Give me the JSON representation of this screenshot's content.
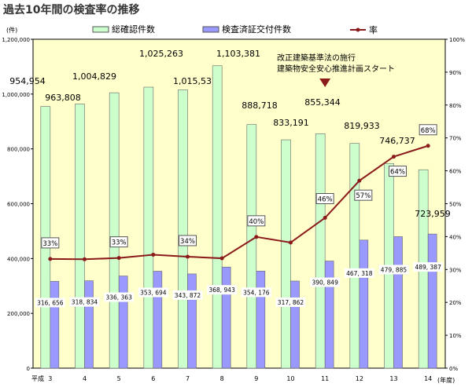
{
  "chart_data": {
    "type": "bar",
    "title": "過去10年間の検査率の推移",
    "ylabel": "(件)",
    "y2label": "",
    "xlabel": "(年度)",
    "x_prefix": "平成",
    "categories": [
      "3",
      "4",
      "5",
      "6",
      "7",
      "8",
      "9",
      "10",
      "11",
      "12",
      "13",
      "14"
    ],
    "ylim": [
      0,
      1200000
    ],
    "y2lim": [
      0,
      100
    ],
    "yticks": [
      "0",
      "200,000",
      "400,000",
      "600,000",
      "800,000",
      "1,000,000",
      "1,200,000"
    ],
    "y2ticks": [
      "0%",
      "10%",
      "20%",
      "30%",
      "40%",
      "50%",
      "60%",
      "70%",
      "80%",
      "90%",
      "100%"
    ],
    "series": [
      {
        "name": "総確認件数",
        "type": "bar",
        "color": "#ccffcc",
        "values": [
          954954,
          963808,
          1004829,
          1025263,
          1015537,
          1103381,
          888718,
          833191,
          855344,
          819933,
          746737,
          723959
        ],
        "labels": [
          "954,954",
          "963,808",
          "1,004,829",
          "1,025,263",
          "1,015,537",
          "1,103,381",
          "888,718",
          "833,191",
          "855,344",
          "819,933",
          "746,737",
          "723,959"
        ]
      },
      {
        "name": "検査済証交付件数",
        "type": "bar",
        "color": "#9999ff",
        "values": [
          316656,
          318834,
          336363,
          353694,
          343872,
          368943,
          354176,
          317862,
          390849,
          467318,
          479885,
          489387
        ],
        "labels": [
          "316, 656",
          "318, 834",
          "336, 363",
          "353, 694",
          "343, 872",
          "368, 943",
          "354, 176",
          "317, 862",
          "390, 849",
          "467, 318",
          "479, 885",
          "489, 387"
        ]
      },
      {
        "name": "率",
        "type": "line",
        "axis": "right",
        "color": "#8b1a1a",
        "values": [
          33.2,
          33.1,
          33.5,
          34.5,
          33.9,
          33.4,
          39.9,
          38.2,
          45.7,
          57.0,
          64.3,
          67.6
        ],
        "labels": [
          "33%",
          "",
          "33%",
          "",
          "34%",
          "",
          "40%",
          "",
          "46%",
          "57%",
          "64%",
          "68%"
        ]
      }
    ],
    "annotation": {
      "lines": [
        "改正建築基準法の施行",
        "建築物安全安心推進計画スタート"
      ],
      "category": "11"
    },
    "legend": "top"
  }
}
